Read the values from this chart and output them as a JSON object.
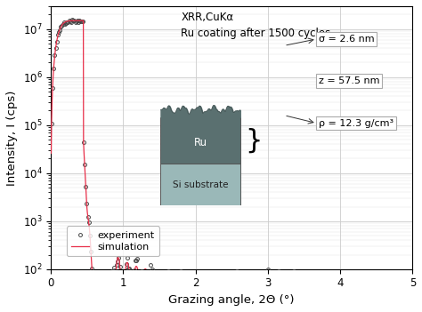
{
  "title_line1": "XRR,CuKα",
  "title_line2": "Ru coating after 1500 cycles",
  "xlabel": "Grazing angle, 2Θ (°)",
  "ylabel": "Intensity, I (cps)",
  "xlim": [
    0,
    5
  ],
  "ylim_log": [
    100,
    30000000
  ],
  "xticks": [
    0,
    1,
    2,
    3,
    4,
    5
  ],
  "yticks_log": [
    100,
    1000,
    10000,
    100000,
    1000000,
    10000000
  ],
  "sigma_label": "σ = 2.6 nm",
  "z_label": "z = 57.5 nm",
  "rho_label": "ρ = 12.3 g/cm³",
  "layer_label": "Ru",
  "substrate_label": "Si substrate",
  "legend_experiment": "experiment",
  "legend_simulation": "simulation",
  "exp_color": "#444444",
  "sim_color": "#e8304a",
  "background_color": "#ffffff",
  "grid_color": "#cccccc",
  "ru_color": "#5a7070",
  "si_color": "#9ab8b8"
}
